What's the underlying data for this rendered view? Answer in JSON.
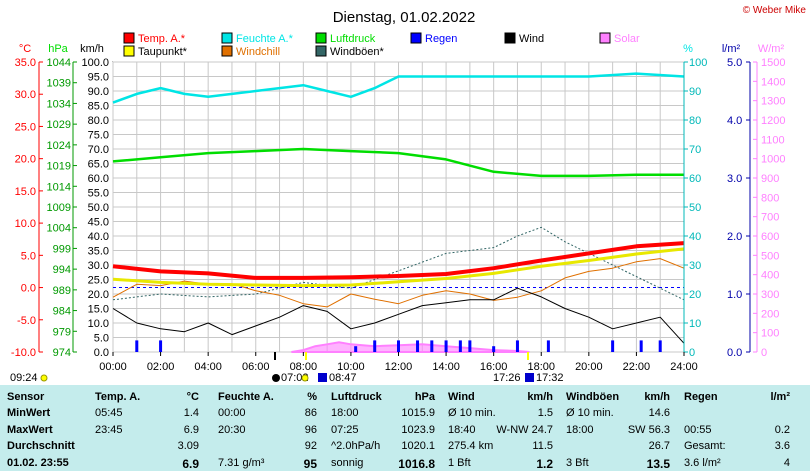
{
  "title": "Dienstag, 01.02.2022",
  "copyright": "© Weber Mike",
  "colors": {
    "temp": "#ff0000",
    "humidity": "#00e5e5",
    "pressure": "#00dd00",
    "rain": "#0000ff",
    "wind": "#000000",
    "solar": "#ff80ff",
    "dewpoint": "#ffff00",
    "windchill": "#e07000",
    "gust": "#336666",
    "table_bg": "#c4ecec"
  },
  "legend": [
    {
      "label": "Temp. A.*",
      "color": "#ff0000"
    },
    {
      "label": "Feuchte A.*",
      "color": "#00e5e5"
    },
    {
      "label": "Luftdruck",
      "color": "#00dd00"
    },
    {
      "label": "Regen",
      "color": "#0000ff"
    },
    {
      "label": "Wind",
      "color": "#000000"
    },
    {
      "label": "Solar",
      "color": "#ff80ff"
    },
    {
      "label": "Taupunkt*",
      "color": "#ffff00"
    },
    {
      "label": "Windchill",
      "color": "#e07000"
    },
    {
      "label": "Windböen*",
      "color": "#336666"
    }
  ],
  "axis_units": {
    "temp": "°C",
    "pressure": "hPa",
    "wind": "km/h",
    "humidity": "%",
    "rain": "l/m²",
    "solar": "W/m²"
  },
  "sun_events": {
    "dawn": "09:24",
    "sunrise": "07:02",
    "sunrise2": "08:47",
    "sunset": "17:26",
    "sunset2": "17:32"
  },
  "chart_data": {
    "type": "line",
    "x_label_ticks": [
      "00:00",
      "02:00",
      "04:00",
      "06:00",
      "08:00",
      "10:00",
      "12:00",
      "14:00",
      "16:00",
      "18:00",
      "20:00",
      "22:00",
      "24:00"
    ],
    "axes": {
      "temp": {
        "range": [
          -10,
          35
        ],
        "ticks": [
          "35.0",
          "30.0",
          "25.0",
          "20.0",
          "15.0",
          "10.0",
          "5.0",
          "0.0",
          "-5.0",
          "-10.0"
        ]
      },
      "pressure": {
        "range": [
          974,
          1044
        ],
        "ticks": [
          "1044",
          "1039",
          "1034",
          "1029",
          "1024",
          "1019",
          "1014",
          "1009",
          "1004",
          "999",
          "994",
          "989",
          "984",
          "979",
          "974"
        ]
      },
      "wind": {
        "range": [
          0,
          100
        ],
        "ticks": [
          "100.0",
          "95.0",
          "90.0",
          "85.0",
          "80.0",
          "75.0",
          "70.0",
          "65.0",
          "60.0",
          "55.0",
          "50.0",
          "45.0",
          "40.0",
          "35.0",
          "30.0",
          "25.0",
          "20.0",
          "15.0",
          "10.0",
          "5.0",
          "0.0"
        ]
      },
      "humidity": {
        "range": [
          0,
          100
        ],
        "ticks": [
          "100",
          "90",
          "80",
          "70",
          "60",
          "50",
          "40",
          "30",
          "20",
          "10",
          "0"
        ]
      },
      "rain": {
        "range": [
          0,
          5
        ],
        "ticks": [
          "5.0",
          "4.0",
          "3.0",
          "2.0",
          "1.0",
          "0.0"
        ]
      },
      "solar": {
        "range": [
          0,
          1500
        ],
        "ticks": [
          "1500",
          "1400",
          "1300",
          "1200",
          "1100",
          "1000",
          "900",
          "800",
          "700",
          "600",
          "500",
          "400",
          "300",
          "200",
          "100",
          "0"
        ]
      }
    },
    "series": [
      {
        "name": "Temp. A.*",
        "axis": "temp",
        "x": [
          0,
          2,
          4,
          6,
          8,
          10,
          12,
          14,
          16,
          18,
          20,
          22,
          24
        ],
        "y": [
          3.3,
          2.5,
          2.2,
          1.5,
          1.5,
          1.6,
          1.8,
          2.1,
          3.0,
          4.2,
          5.3,
          6.4,
          6.9
        ]
      },
      {
        "name": "Feuchte A.*",
        "axis": "humidity",
        "x": [
          0,
          1,
          2,
          3,
          4,
          5,
          6,
          7,
          8,
          9,
          10,
          11,
          12,
          14,
          16,
          18,
          20,
          22,
          24
        ],
        "y": [
          86,
          89,
          91,
          89,
          88,
          89,
          90,
          91,
          92,
          90,
          88,
          91,
          95,
          95,
          95,
          95,
          95,
          96,
          95
        ]
      },
      {
        "name": "Luftdruck",
        "axis": "pressure",
        "x": [
          0,
          2,
          4,
          6,
          8,
          10,
          12,
          14,
          16,
          18,
          20,
          22,
          24
        ],
        "y": [
          1020,
          1021,
          1022,
          1022.5,
          1023,
          1022.5,
          1022,
          1020.5,
          1017.5,
          1016.5,
          1016.5,
          1016.8,
          1016.8
        ]
      },
      {
        "name": "Taupunkt*",
        "axis": "temp",
        "x": [
          0,
          2,
          4,
          6,
          8,
          10,
          12,
          14,
          16,
          18,
          20,
          22,
          24
        ],
        "y": [
          1.3,
          0.8,
          0.5,
          0.4,
          0.3,
          0.4,
          0.9,
          1.4,
          2.2,
          3.3,
          4.2,
          5.2,
          6.0
        ]
      },
      {
        "name": "Wind",
        "axis": "wind",
        "x": [
          0,
          1,
          2,
          3,
          4,
          5,
          6,
          7,
          8,
          9,
          10,
          11,
          12,
          13,
          14,
          15,
          16,
          17,
          18,
          19,
          20,
          21,
          22,
          23,
          24
        ],
        "y": [
          15,
          10,
          8,
          7,
          10,
          6,
          9,
          12,
          16,
          14,
          8,
          10,
          13,
          16,
          17,
          18,
          18,
          22,
          19,
          15,
          12,
          8,
          10,
          12,
          3
        ]
      },
      {
        "name": "Windchill",
        "axis": "temp",
        "x": [
          0,
          1,
          2,
          3,
          4,
          5,
          6,
          7,
          8,
          9,
          10,
          11,
          12,
          13,
          14,
          15,
          16,
          17,
          18,
          19,
          20,
          21,
          22,
          23,
          24
        ],
        "y": [
          -1.5,
          0.5,
          0.3,
          1.0,
          0.5,
          0.6,
          -0.5,
          -1.2,
          -2.5,
          -3.0,
          -1.0,
          -1.8,
          -2.5,
          -1.2,
          -0.5,
          -1.0,
          -2.0,
          -1.5,
          -0.5,
          1.5,
          2.5,
          3.0,
          4.0,
          4.5,
          3.0
        ]
      },
      {
        "name": "Windböen*",
        "axis": "wind",
        "x": [
          0,
          2,
          4,
          6,
          8,
          10,
          12,
          14,
          16,
          17,
          18,
          19,
          20,
          22,
          24
        ],
        "y": [
          18,
          20,
          19,
          20,
          24,
          22,
          28,
          34,
          36,
          40,
          43,
          38,
          34,
          26,
          18
        ]
      },
      {
        "name": "Solar",
        "axis": "solar",
        "x": [
          7.5,
          8,
          8.5,
          9,
          9.5,
          10,
          11,
          12,
          13,
          14,
          15,
          16,
          17,
          17.5
        ],
        "y": [
          0,
          10,
          30,
          40,
          50,
          40,
          30,
          35,
          40,
          30,
          20,
          10,
          5,
          0
        ]
      },
      {
        "name": "Regen",
        "axis": "rain",
        "x": [
          1,
          2,
          10.2,
          11,
          12,
          12.8,
          13.4,
          14,
          14.6,
          15,
          16,
          17,
          18.3,
          21,
          22.2,
          23
        ],
        "y": [
          0.2,
          0.2,
          0.1,
          0.2,
          0.2,
          0.2,
          0.2,
          0.2,
          0.2,
          0.2,
          0.1,
          0.2,
          0.2,
          0.2,
          0.2,
          0.2
        ]
      }
    ]
  },
  "table": {
    "headers": [
      "Sensor",
      "Temp. A.",
      "°C",
      "Feuchte A.",
      "%",
      "Luftdruck",
      "hPa",
      "Wind",
      "km/h",
      "Windböen",
      "km/h",
      "Regen",
      "l/m²"
    ],
    "rows": [
      [
        "MinWert",
        "05:45",
        "1.4",
        "00:00",
        "86",
        "18:00",
        "1015.9",
        "Ø 10 min.",
        "1.5",
        "Ø 10 min.",
        "14.6",
        "",
        ""
      ],
      [
        "MaxWert",
        "23:45",
        "6.9",
        "20:30",
        "96",
        "07:25",
        "1023.9",
        "18:40",
        "W-NW 24.7",
        "18:00",
        "SW 56.3",
        "00:55",
        "0.2"
      ],
      [
        "Durchschnitt",
        "",
        "3.09",
        "",
        "92",
        "^2.0hPa/h",
        "1020.1",
        "275.4 km",
        "11.5",
        "",
        "26.7",
        "Gesamt:",
        "3.6"
      ],
      [
        "01.02. 23:55",
        "",
        "6.9",
        "7.31 g/m³",
        "95",
        "sonnig",
        "1016.8",
        "1 Bft",
        "1.2",
        "3 Bft",
        "13.5",
        "3.6 l/m²",
        "4"
      ]
    ]
  }
}
